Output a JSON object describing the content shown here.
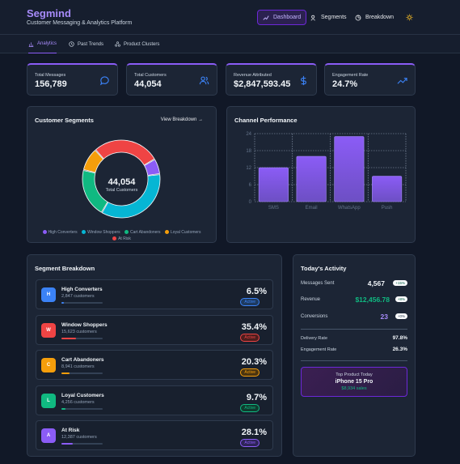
{
  "app": {
    "brand": "Segmind",
    "subtitle": "Customer Messaging & Analytics Platform"
  },
  "nav": {
    "dashboard": "Dashboard",
    "segments": "Segments",
    "breakdown": "Breakdown"
  },
  "subnav": {
    "analytics": "Analytics",
    "past_trends": "Past Trends",
    "product_clusters": "Product Clusters"
  },
  "stats": [
    {
      "label": "Total Messages",
      "value": "156,789",
      "icon": "chat-bubble-icon"
    },
    {
      "label": "Total Customers",
      "value": "44,054",
      "icon": "users-icon"
    },
    {
      "label": "Revenue Attributed",
      "value": "$2,847,593.45",
      "icon": "dollar-icon"
    },
    {
      "label": "Engagement Rate",
      "value": "24.7%",
      "icon": "trend-up-icon"
    }
  ],
  "segments_panel": {
    "title": "Customer Segments",
    "link": "View Breakdown →",
    "center_value": "44,054",
    "center_label": "Total Customers",
    "legend": [
      "High Converters",
      "Window Shoppers",
      "Cart Abandoners",
      "Loyal Customers",
      "At Risk"
    ]
  },
  "chart_data": {
    "type": "bar",
    "title": "Channel Performance",
    "categories": [
      "SMS",
      "Email",
      "WhatsApp",
      "Push"
    ],
    "values": [
      12,
      16,
      23,
      9
    ],
    "yticks": [
      "0",
      "6",
      "12",
      "18",
      "24"
    ],
    "ylim": [
      0,
      24
    ],
    "grid": true
  },
  "donut": {
    "values": [
      6.5,
      35.4,
      20.3,
      9.7,
      28.1
    ]
  },
  "breakdown": {
    "title": "Segment Breakdown",
    "rows": [
      {
        "letter": "H",
        "name": "High Converters",
        "count": "2,847 customers",
        "pct": "6.5%",
        "status": "Active",
        "share": 0.065
      },
      {
        "letter": "W",
        "name": "Window Shoppers",
        "count": "15,623 customers",
        "pct": "35.4%",
        "status": "Active",
        "share": 0.354
      },
      {
        "letter": "C",
        "name": "Cart Abandoners",
        "count": "8,941 customers",
        "pct": "20.3%",
        "status": "Active",
        "share": 0.203
      },
      {
        "letter": "L",
        "name": "Loyal Customers",
        "count": "4,256 customers",
        "pct": "9.7%",
        "status": "Active",
        "share": 0.097
      },
      {
        "letter": "A",
        "name": "At Risk",
        "count": "12,387 customers",
        "pct": "28.1%",
        "status": "Active",
        "share": 0.281
      }
    ]
  },
  "activity": {
    "title": "Today's Activity",
    "messages_label": "Messages Sent",
    "messages_value": "4,567",
    "messages_change": "+15%",
    "revenue_label": "Revenue",
    "revenue_value": "$12,456.78",
    "revenue_change": "+8%",
    "conversions_label": "Conversions",
    "conversions_value": "23",
    "conversions_change": "+0%",
    "delivery_label": "Delivery Rate",
    "delivery_value": "97.8%",
    "engagement_label": "Engagement Rate",
    "engagement_value": "26.3%",
    "top_label": "Top Product Today",
    "top_name": "iPhone 15 Pro",
    "top_sales": "$8,934 sales"
  },
  "colors": {
    "accent": "#8b5cf6",
    "segments": [
      "#8b5cf6",
      "#06b6d4",
      "#10b981",
      "#f59e0b",
      "#ef4444"
    ],
    "badges": [
      "#3b82f6",
      "#ef4444",
      "#f59e0b",
      "#10b981",
      "#8b5cf6"
    ]
  }
}
